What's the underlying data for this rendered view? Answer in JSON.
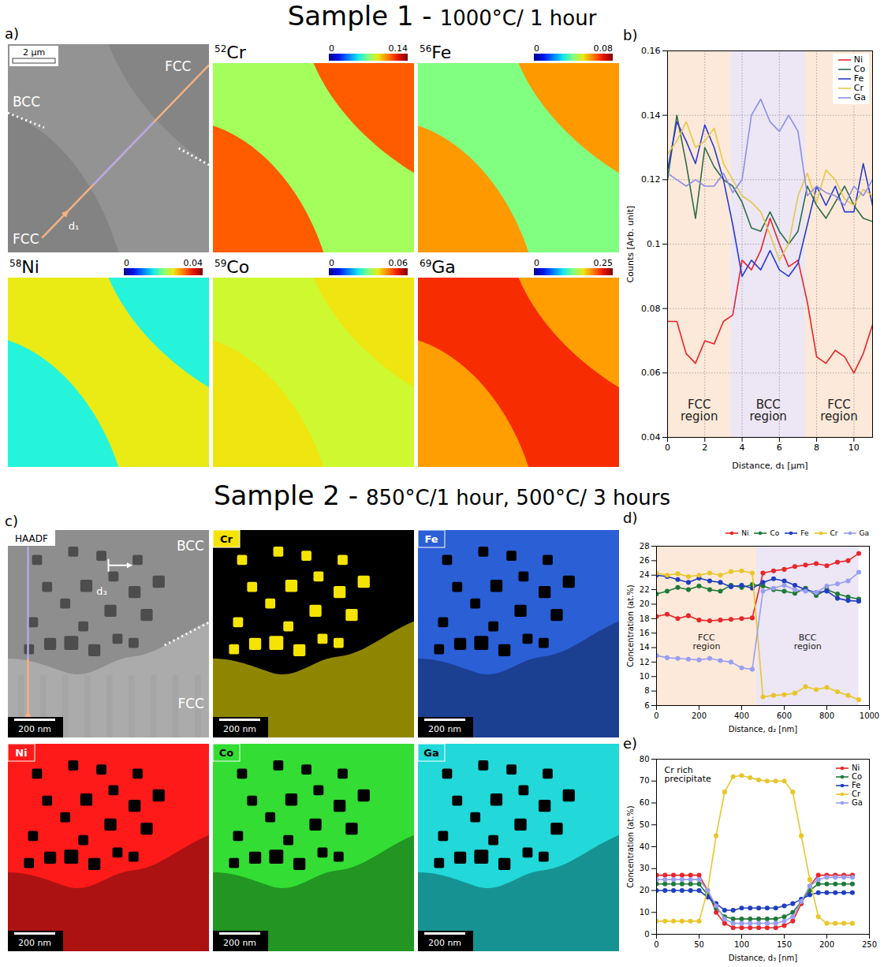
{
  "chart_data": [
    {
      "type": "line",
      "panel": "b)",
      "x_label": "Distance, d₁ [μm]",
      "y_label": "Counts [Arb. unit]",
      "xlim": [
        0,
        11
      ],
      "xticks": [
        0,
        2,
        4,
        6,
        8,
        10
      ],
      "ylim": [
        0.04,
        0.16
      ],
      "yticks": [
        0.04,
        0.06,
        0.08,
        0.1,
        0.12,
        0.14,
        0.16
      ],
      "grid": true,
      "legend": "top-right",
      "x": [
        0,
        0.5,
        1,
        1.5,
        2,
        2.5,
        3,
        3.5,
        4,
        4.5,
        5,
        5.5,
        6,
        6.5,
        7,
        7.5,
        8,
        8.5,
        9,
        9.5,
        10,
        10.5,
        11
      ],
      "series": [
        {
          "name": "Ni",
          "color": "#e8262b",
          "values": [
            0.076,
            0.076,
            0.066,
            0.063,
            0.07,
            0.069,
            0.076,
            0.078,
            0.095,
            0.092,
            0.098,
            0.108,
            0.1,
            0.093,
            0.095,
            0.082,
            0.065,
            0.063,
            0.067,
            0.065,
            0.06,
            0.066,
            0.075
          ]
        },
        {
          "name": "Co",
          "color": "#2e6b4a",
          "values": [
            0.12,
            0.14,
            0.125,
            0.108,
            0.13,
            0.124,
            0.12,
            0.118,
            0.113,
            0.105,
            0.104,
            0.11,
            0.104,
            0.1,
            0.104,
            0.118,
            0.112,
            0.108,
            0.113,
            0.118,
            0.112,
            0.108,
            0.107
          ]
        },
        {
          "name": "Fe",
          "color": "#2a3bd0",
          "values": [
            0.123,
            0.138,
            0.132,
            0.125,
            0.137,
            0.13,
            0.12,
            0.106,
            0.09,
            0.095,
            0.092,
            0.098,
            0.092,
            0.09,
            0.094,
            0.106,
            0.118,
            0.112,
            0.118,
            0.11,
            0.11,
            0.125,
            0.112
          ]
        },
        {
          "name": "Cr",
          "color": "#e6c84a",
          "values": [
            0.128,
            0.132,
            0.138,
            0.13,
            0.132,
            0.136,
            0.125,
            0.12,
            0.115,
            0.113,
            0.11,
            0.103,
            0.095,
            0.1,
            0.115,
            0.122,
            0.113,
            0.123,
            0.12,
            0.114,
            0.112,
            0.117,
            0.115
          ]
        },
        {
          "name": "Ga",
          "color": "#8c8ee8",
          "values": [
            0.122,
            0.12,
            0.118,
            0.12,
            0.118,
            0.118,
            0.122,
            0.116,
            0.12,
            0.14,
            0.145,
            0.138,
            0.135,
            0.14,
            0.135,
            0.115,
            0.118,
            0.116,
            0.115,
            0.112,
            0.118,
            0.115,
            0.12
          ]
        }
      ],
      "regions": [
        {
          "label": "FCC region",
          "x1": 0,
          "x2": 3.4,
          "color": "#fde9d9"
        },
        {
          "label": "BCC region",
          "x1": 3.4,
          "x2": 7.4,
          "color": "#ece6f5"
        },
        {
          "label": "FCC region",
          "x1": 7.4,
          "x2": 11,
          "color": "#fde9d9"
        }
      ]
    },
    {
      "type": "line",
      "panel": "d)",
      "x_label": "Distance, d₂ [nm]",
      "y_label": "Concentration (at.%)",
      "xlim": [
        0,
        1000
      ],
      "xticks": [
        0,
        200,
        400,
        600,
        800,
        1000
      ],
      "ylim": [
        6,
        28
      ],
      "yticks": [
        6,
        8,
        10,
        12,
        14,
        16,
        18,
        20,
        22,
        24,
        26,
        28
      ],
      "marker": "circle",
      "legend": "top",
      "x": [
        0,
        50,
        100,
        150,
        200,
        250,
        300,
        350,
        400,
        450,
        500,
        550,
        600,
        650,
        700,
        750,
        800,
        850,
        900,
        950
      ],
      "series": [
        {
          "name": "Ni",
          "color": "#e8262b",
          "values": [
            18.3,
            18.6,
            18.0,
            18.4,
            17.8,
            17.7,
            17.8,
            17.9,
            18.0,
            18.1,
            24.3,
            24.6,
            24.8,
            25.2,
            25.4,
            25.6,
            25.3,
            25.8,
            26.0,
            27.0
          ]
        },
        {
          "name": "Co",
          "color": "#1f7a3a",
          "values": [
            21.4,
            21.8,
            22.3,
            22.0,
            22.5,
            22.0,
            21.8,
            22.6,
            22.3,
            22.7,
            22.5,
            22.0,
            21.8,
            21.5,
            22.2,
            21.2,
            22.0,
            21.4,
            21.0,
            20.7
          ]
        },
        {
          "name": "Fe",
          "color": "#1f3fbf",
          "values": [
            24.0,
            23.8,
            23.4,
            23.0,
            23.6,
            23.2,
            23.0,
            22.4,
            22.6,
            22.2,
            23.0,
            23.5,
            23.2,
            22.6,
            22.0,
            21.6,
            21.8,
            20.8,
            20.5,
            20.4
          ]
        },
        {
          "name": "Cr",
          "color": "#e8c62a",
          "values": [
            24.3,
            24.0,
            24.2,
            23.8,
            24.0,
            24.3,
            24.0,
            24.5,
            24.6,
            24.3,
            7.2,
            7.4,
            7.5,
            7.7,
            8.6,
            8.2,
            8.5,
            7.9,
            7.4,
            6.8
          ]
        },
        {
          "name": "Ga",
          "color": "#9a9ef0",
          "values": [
            12.9,
            12.6,
            12.5,
            12.4,
            12.3,
            12.5,
            12.2,
            12.0,
            11.2,
            11.0,
            21.8,
            22.2,
            22.6,
            22.0,
            21.8,
            21.6,
            22.5,
            22.8,
            23.2,
            24.4
          ]
        }
      ],
      "regions": [
        {
          "label": "FCC region",
          "x1": 0,
          "x2": 470,
          "color": "#fde9d9"
        },
        {
          "label": "BCC region",
          "x1": 470,
          "x2": 950,
          "color": "#ece6f5"
        }
      ]
    },
    {
      "type": "line",
      "panel": "e)",
      "x_label": "Distance, d₃ [nm]",
      "y_label": "Concentration (at.%)",
      "xlim": [
        0,
        250
      ],
      "xticks": [
        0,
        50,
        100,
        150,
        200,
        250
      ],
      "ylim": [
        0,
        80
      ],
      "yticks": [
        0,
        10,
        20,
        30,
        40,
        50,
        60,
        70,
        80
      ],
      "marker": "circle",
      "legend": "top-right",
      "annotation": "Cr rich precipitate",
      "x": [
        0,
        10,
        20,
        30,
        40,
        50,
        60,
        70,
        80,
        90,
        100,
        110,
        120,
        130,
        140,
        150,
        160,
        170,
        180,
        190,
        200,
        210,
        220,
        230
      ],
      "series": [
        {
          "name": "Ni",
          "color": "#e8262b",
          "values": [
            27,
            27,
            27,
            27,
            27,
            27,
            20,
            10,
            5,
            3,
            3,
            3,
            3,
            3,
            3,
            4,
            6,
            14,
            22,
            27,
            27,
            27,
            27,
            27
          ]
        },
        {
          "name": "Co",
          "color": "#1f7a3a",
          "values": [
            23,
            23,
            23,
            23,
            23,
            23,
            18,
            12,
            8,
            7,
            7,
            7,
            7,
            7,
            7,
            8,
            10,
            15,
            20,
            23,
            23,
            23,
            23,
            23
          ]
        },
        {
          "name": "Fe",
          "color": "#1f3fbf",
          "values": [
            20,
            20,
            20,
            20,
            20,
            20,
            17,
            14,
            11,
            11,
            12,
            12,
            12,
            12,
            12,
            13,
            14,
            16,
            18,
            19,
            19,
            19,
            19,
            19
          ]
        },
        {
          "name": "Cr",
          "color": "#e8c62a",
          "values": [
            6,
            6,
            6,
            6,
            6,
            6,
            20,
            45,
            65,
            72,
            72.5,
            71.5,
            70.5,
            70,
            70,
            70,
            65,
            45,
            25,
            8,
            5,
            5,
            5,
            5
          ]
        },
        {
          "name": "Ga",
          "color": "#9a9ef0",
          "values": [
            25,
            25,
            25,
            25,
            25,
            25,
            20,
            13,
            7,
            5,
            5,
            5,
            5,
            5,
            5,
            6,
            8,
            15,
            22,
            25,
            26,
            26,
            26,
            26
          ]
        }
      ]
    }
  ],
  "figure": {
    "sample1": {
      "title": "Sample 1 -",
      "condition": "1000°C/ 1 hour",
      "panel": "a)",
      "sem": {
        "scale_bar": "2 μm",
        "label_bcc": "BCC",
        "label_fcc": "FCC",
        "line": "d₁"
      },
      "maps": [
        {
          "isotope": "52",
          "element": "Cr",
          "colorbar": {
            "range": [
              0,
              0.14
            ],
            "ticks": [
              0,
              0.14
            ]
          },
          "levels": {
            "FCC": 0.11,
            "BCC": 0.075
          }
        },
        {
          "isotope": "56",
          "element": "Fe",
          "colorbar": {
            "range": [
              0,
              0.08
            ],
            "ticks": [
              0,
              0.08
            ]
          },
          "levels": {
            "FCC": 0.058,
            "BCC": 0.04
          }
        },
        {
          "isotope": "58",
          "element": "Ni",
          "colorbar": {
            "range": [
              0,
              0.04
            ],
            "ticks": [
              0,
              0.04
            ]
          },
          "levels": {
            "FCC": 0.016,
            "BCC": 0.025
          }
        },
        {
          "isotope": "59",
          "element": "Co",
          "colorbar": {
            "range": [
              0,
              0.06
            ],
            "ticks": [
              0,
              0.06
            ]
          },
          "levels": {
            "FCC": 0.038,
            "BCC": 0.035
          }
        },
        {
          "isotope": "69",
          "element": "Ga",
          "colorbar": {
            "range": [
              0,
              0.25
            ],
            "ticks": [
              0,
              0.25
            ]
          },
          "levels": {
            "FCC": 0.18,
            "BCC": 0.21
          }
        }
      ]
    },
    "sample2": {
      "title": "Sample 2 -",
      "condition": "850°C/1 hour, 500°C/ 3 hours",
      "panel": "c)",
      "scale_bar": "200 nm",
      "haadf": {
        "label": "HAADF",
        "label_bcc": "BCC",
        "label_fcc": "FCC",
        "line_long": "d₂",
        "line_short": "d₃"
      },
      "maps": [
        {
          "element": "Cr",
          "color": "#f5e400",
          "precipitate_rich": true
        },
        {
          "element": "Fe",
          "color": "#2a5fd6",
          "precipitate_rich": false
        },
        {
          "element": "Ni",
          "color": "#ff1a1a",
          "precipitate_rich": false
        },
        {
          "element": "Co",
          "color": "#33dd33",
          "precipitate_rich": false
        },
        {
          "element": "Ga",
          "color": "#22d8d8",
          "precipitate_rich": false
        }
      ]
    }
  }
}
